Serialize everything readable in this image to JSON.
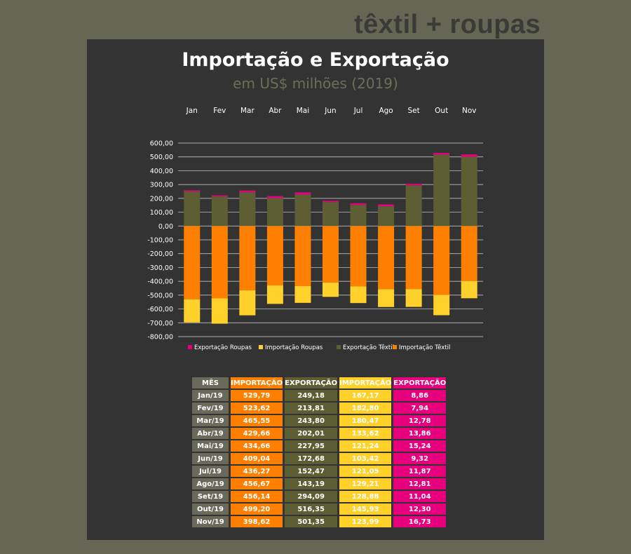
{
  "brand": "têxtil + roupas",
  "chart_data": {
    "type": "bar",
    "stacked": true,
    "title": "Importação e Exportação",
    "subtitle": "em US$ milhões (2019)",
    "categories": [
      "Jan",
      "Fev",
      "Mar",
      "Abr",
      "Mai",
      "Jun",
      "Jul",
      "Ago",
      "Set",
      "Out",
      "Nov"
    ],
    "y_ticks": [
      "600,00",
      "500,00",
      "400,00",
      "300,00",
      "200,00",
      "100,00",
      "0,00",
      "-100,00",
      "-200,00",
      "-300,00",
      "-400,00",
      "-500,00",
      "-600,00",
      "-700,00",
      "-800,00"
    ],
    "ylim": [
      -800,
      600
    ],
    "grid": true,
    "legend_position": "bottom",
    "series": [
      {
        "name": "Exportação Roupas",
        "color": "#e6007e",
        "values": [
          8.86,
          7.94,
          12.78,
          13.86,
          15.24,
          9.32,
          11.87,
          12.81,
          11.04,
          12.3,
          16.73
        ]
      },
      {
        "name": "Importação Roupas",
        "color": "#ffd12a",
        "values": [
          -167.17,
          -182.8,
          -180.47,
          -133.62,
          -121.24,
          -103.42,
          -121.05,
          -129.21,
          -128.88,
          -145.93,
          -123.99
        ]
      },
      {
        "name": "Exportação Têxtil",
        "color": "#5e5e34",
        "values": [
          249.18,
          213.81,
          243.8,
          202.01,
          227.95,
          172.68,
          152.47,
          143.19,
          294.09,
          516.35,
          501.35
        ]
      },
      {
        "name": "Importação Têxtil",
        "color": "#ff8000",
        "values": [
          -529.79,
          -523.62,
          -465.55,
          -429.66,
          -434.66,
          -409.04,
          -436.27,
          -456.67,
          -456.14,
          -499.2,
          -398.62
        ]
      }
    ]
  },
  "table": {
    "headers": [
      "MÊS",
      "IMPORTAÇÃO",
      "EXPORTAÇÃO",
      "IMPORTAÇÃO",
      "EXPORTAÇÃO"
    ],
    "rows": [
      [
        "Jan/19",
        "529,79",
        "249,18",
        "167,17",
        "8,86"
      ],
      [
        "Fev/19",
        "523,62",
        "213,81",
        "182,80",
        "7,94"
      ],
      [
        "Mar/19",
        "465,55",
        "243,80",
        "180,47",
        "12,78"
      ],
      [
        "Abr/19",
        "429,66",
        "202,01",
        "133,62",
        "13,86"
      ],
      [
        "Mai/19",
        "434,66",
        "227,95",
        "121,24",
        "15,24"
      ],
      [
        "Jun/19",
        "409,04",
        "172,68",
        "103,42",
        "9,32"
      ],
      [
        "Jul/19",
        "436,27",
        "152,47",
        "121,05",
        "11,87"
      ],
      [
        "Ago/19",
        "456,67",
        "143,19",
        "129,21",
        "12,81"
      ],
      [
        "Set/19",
        "456,14",
        "294,09",
        "128,88",
        "11,04"
      ],
      [
        "Out/19",
        "499,20",
        "516,35",
        "145,93",
        "12,30"
      ],
      [
        "Nov/19",
        "398,62",
        "501,35",
        "123,99",
        "16,73"
      ]
    ]
  }
}
